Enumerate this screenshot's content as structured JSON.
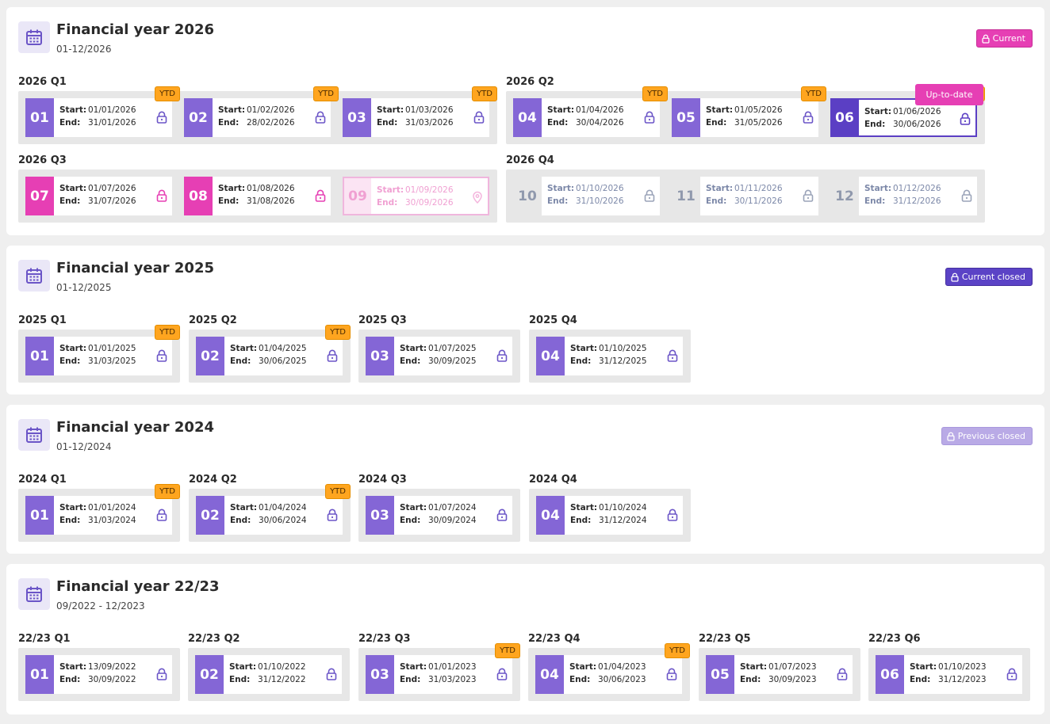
{
  "years": [
    {
      "title": "Financial year 2026",
      "range": "01-12/2026",
      "status": {
        "label": "Current",
        "type": "current"
      },
      "quarters": [
        {
          "label": "2026 Q1",
          "months": [
            {
              "num": "01",
              "start": "01/01/2026",
              "end": "31/01/2026",
              "ytd": "YTD",
              "state": "normal"
            },
            {
              "num": "02",
              "start": "01/02/2026",
              "end": "28/02/2026",
              "ytd": "YTD",
              "state": "normal"
            },
            {
              "num": "03",
              "start": "01/03/2026",
              "end": "31/03/2026",
              "ytd": "YTD",
              "state": "normal"
            }
          ]
        },
        {
          "label": "2026 Q2",
          "months": [
            {
              "num": "04",
              "start": "01/04/2026",
              "end": "30/04/2026",
              "ytd": "YTD",
              "state": "normal"
            },
            {
              "num": "05",
              "start": "01/05/2026",
              "end": "31/05/2026",
              "ytd": "YTD",
              "state": "normal"
            },
            {
              "num": "06",
              "start": "01/06/2026",
              "end": "30/06/2026",
              "ytd": "YTD",
              "state": "selected",
              "tooltip": "Up-to-date"
            }
          ]
        },
        {
          "label": "2026 Q3",
          "months": [
            {
              "num": "07",
              "start": "01/07/2026",
              "end": "31/07/2026",
              "state": "pink"
            },
            {
              "num": "08",
              "start": "01/08/2026",
              "end": "31/08/2026",
              "state": "pink"
            },
            {
              "num": "09",
              "start": "01/09/2026",
              "end": "30/09/2026",
              "state": "future"
            }
          ]
        },
        {
          "label": "2026 Q4",
          "months": [
            {
              "num": "10",
              "start": "01/10/2026",
              "end": "31/10/2026",
              "state": "grey"
            },
            {
              "num": "11",
              "start": "01/11/2026",
              "end": "30/11/2026",
              "state": "grey"
            },
            {
              "num": "12",
              "start": "01/12/2026",
              "end": "31/12/2026",
              "state": "grey"
            }
          ]
        }
      ]
    },
    {
      "title": "Financial year 2025",
      "range": "01-12/2025",
      "status": {
        "label": "Current closed",
        "type": "current-closed"
      },
      "quarters": [
        {
          "label": "2025 Q1",
          "months": [
            {
              "num": "01",
              "start": "01/01/2025",
              "end": "31/03/2025",
              "ytd": "YTD",
              "state": "normal"
            }
          ]
        },
        {
          "label": "2025 Q2",
          "months": [
            {
              "num": "02",
              "start": "01/04/2025",
              "end": "30/06/2025",
              "ytd": "YTD",
              "state": "normal"
            }
          ]
        },
        {
          "label": "2025 Q3",
          "months": [
            {
              "num": "03",
              "start": "01/07/2025",
              "end": "30/09/2025",
              "state": "normal"
            }
          ]
        },
        {
          "label": "2025 Q4",
          "months": [
            {
              "num": "04",
              "start": "01/10/2025",
              "end": "31/12/2025",
              "state": "normal"
            }
          ]
        }
      ]
    },
    {
      "title": "Financial year 2024",
      "range": "01-12/2024",
      "status": {
        "label": "Previous closed",
        "type": "prev-closed"
      },
      "quarters": [
        {
          "label": "2024 Q1",
          "months": [
            {
              "num": "01",
              "start": "01/01/2024",
              "end": "31/03/2024",
              "ytd": "YTD",
              "state": "normal"
            }
          ]
        },
        {
          "label": "2024 Q2",
          "months": [
            {
              "num": "02",
              "start": "01/04/2024",
              "end": "30/06/2024",
              "ytd": "YTD",
              "state": "normal"
            }
          ]
        },
        {
          "label": "2024 Q3",
          "months": [
            {
              "num": "03",
              "start": "01/07/2024",
              "end": "30/09/2024",
              "state": "normal"
            }
          ]
        },
        {
          "label": "2024 Q4",
          "months": [
            {
              "num": "04",
              "start": "01/10/2024",
              "end": "31/12/2024",
              "state": "normal"
            }
          ]
        }
      ]
    },
    {
      "title": "Financial year 22/23",
      "range": "09/2022 - 12/2023",
      "quarters": [
        {
          "label": "22/23 Q1",
          "months": [
            {
              "num": "01",
              "start": "13/09/2022",
              "end": "30/09/2022",
              "state": "normal"
            }
          ]
        },
        {
          "label": "22/23 Q2",
          "months": [
            {
              "num": "02",
              "start": "01/10/2022",
              "end": "31/12/2022",
              "state": "normal"
            }
          ]
        },
        {
          "label": "22/23 Q3",
          "months": [
            {
              "num": "03",
              "start": "01/01/2023",
              "end": "31/03/2023",
              "ytd": "YTD",
              "state": "normal"
            }
          ]
        },
        {
          "label": "22/23 Q4",
          "months": [
            {
              "num": "04",
              "start": "01/04/2023",
              "end": "30/06/2023",
              "ytd": "YTD",
              "state": "normal"
            }
          ]
        },
        {
          "label": "22/23 Q5",
          "months": [
            {
              "num": "05",
              "start": "01/07/2023",
              "end": "30/09/2023",
              "state": "normal"
            }
          ]
        },
        {
          "label": "22/23 Q6",
          "months": [
            {
              "num": "06",
              "start": "01/10/2023",
              "end": "31/12/2023",
              "state": "normal"
            }
          ]
        }
      ]
    }
  ],
  "labels": {
    "start": "Start:",
    "end": "End:"
  },
  "colors": {
    "primary": "#8466d6",
    "selected": "#5b3fc4",
    "pink": "#e63fb4",
    "ytd": "#ffa51f",
    "grey_text": "#7c88a8",
    "current_closed": "#5b43c6",
    "previous_closed": "#b9aae6"
  }
}
